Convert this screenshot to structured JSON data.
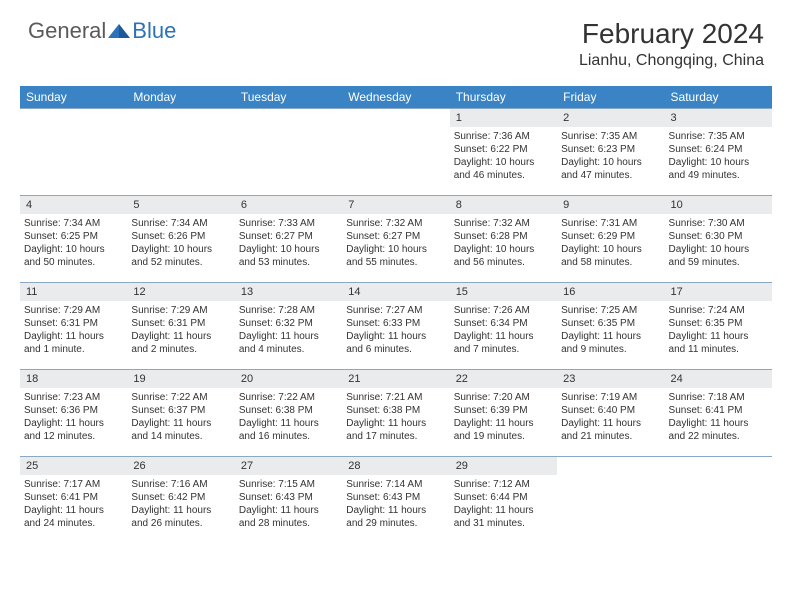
{
  "logo": {
    "general": "General",
    "blue": "Blue"
  },
  "title": "February 2024",
  "location": "Lianhu, Chongqing, China",
  "colors": {
    "header_bg": "#3a84c6",
    "header_text": "#ffffff",
    "daynum_bg": "#e9ebec",
    "row_border": "#8aa8c4",
    "body_text": "#333333",
    "logo_blue": "#2d71b8",
    "logo_gray": "#5a5a5a"
  },
  "day_names": [
    "Sunday",
    "Monday",
    "Tuesday",
    "Wednesday",
    "Thursday",
    "Friday",
    "Saturday"
  ],
  "weeks": [
    [
      {
        "empty": true
      },
      {
        "empty": true
      },
      {
        "empty": true
      },
      {
        "empty": true
      },
      {
        "num": "1",
        "sunrise": "Sunrise: 7:36 AM",
        "sunset": "Sunset: 6:22 PM",
        "dl1": "Daylight: 10 hours",
        "dl2": "and 46 minutes."
      },
      {
        "num": "2",
        "sunrise": "Sunrise: 7:35 AM",
        "sunset": "Sunset: 6:23 PM",
        "dl1": "Daylight: 10 hours",
        "dl2": "and 47 minutes."
      },
      {
        "num": "3",
        "sunrise": "Sunrise: 7:35 AM",
        "sunset": "Sunset: 6:24 PM",
        "dl1": "Daylight: 10 hours",
        "dl2": "and 49 minutes."
      }
    ],
    [
      {
        "num": "4",
        "sunrise": "Sunrise: 7:34 AM",
        "sunset": "Sunset: 6:25 PM",
        "dl1": "Daylight: 10 hours",
        "dl2": "and 50 minutes."
      },
      {
        "num": "5",
        "sunrise": "Sunrise: 7:34 AM",
        "sunset": "Sunset: 6:26 PM",
        "dl1": "Daylight: 10 hours",
        "dl2": "and 52 minutes."
      },
      {
        "num": "6",
        "sunrise": "Sunrise: 7:33 AM",
        "sunset": "Sunset: 6:27 PM",
        "dl1": "Daylight: 10 hours",
        "dl2": "and 53 minutes."
      },
      {
        "num": "7",
        "sunrise": "Sunrise: 7:32 AM",
        "sunset": "Sunset: 6:27 PM",
        "dl1": "Daylight: 10 hours",
        "dl2": "and 55 minutes."
      },
      {
        "num": "8",
        "sunrise": "Sunrise: 7:32 AM",
        "sunset": "Sunset: 6:28 PM",
        "dl1": "Daylight: 10 hours",
        "dl2": "and 56 minutes."
      },
      {
        "num": "9",
        "sunrise": "Sunrise: 7:31 AM",
        "sunset": "Sunset: 6:29 PM",
        "dl1": "Daylight: 10 hours",
        "dl2": "and 58 minutes."
      },
      {
        "num": "10",
        "sunrise": "Sunrise: 7:30 AM",
        "sunset": "Sunset: 6:30 PM",
        "dl1": "Daylight: 10 hours",
        "dl2": "and 59 minutes."
      }
    ],
    [
      {
        "num": "11",
        "sunrise": "Sunrise: 7:29 AM",
        "sunset": "Sunset: 6:31 PM",
        "dl1": "Daylight: 11 hours",
        "dl2": "and 1 minute."
      },
      {
        "num": "12",
        "sunrise": "Sunrise: 7:29 AM",
        "sunset": "Sunset: 6:31 PM",
        "dl1": "Daylight: 11 hours",
        "dl2": "and 2 minutes."
      },
      {
        "num": "13",
        "sunrise": "Sunrise: 7:28 AM",
        "sunset": "Sunset: 6:32 PM",
        "dl1": "Daylight: 11 hours",
        "dl2": "and 4 minutes."
      },
      {
        "num": "14",
        "sunrise": "Sunrise: 7:27 AM",
        "sunset": "Sunset: 6:33 PM",
        "dl1": "Daylight: 11 hours",
        "dl2": "and 6 minutes."
      },
      {
        "num": "15",
        "sunrise": "Sunrise: 7:26 AM",
        "sunset": "Sunset: 6:34 PM",
        "dl1": "Daylight: 11 hours",
        "dl2": "and 7 minutes."
      },
      {
        "num": "16",
        "sunrise": "Sunrise: 7:25 AM",
        "sunset": "Sunset: 6:35 PM",
        "dl1": "Daylight: 11 hours",
        "dl2": "and 9 minutes."
      },
      {
        "num": "17",
        "sunrise": "Sunrise: 7:24 AM",
        "sunset": "Sunset: 6:35 PM",
        "dl1": "Daylight: 11 hours",
        "dl2": "and 11 minutes."
      }
    ],
    [
      {
        "num": "18",
        "sunrise": "Sunrise: 7:23 AM",
        "sunset": "Sunset: 6:36 PM",
        "dl1": "Daylight: 11 hours",
        "dl2": "and 12 minutes."
      },
      {
        "num": "19",
        "sunrise": "Sunrise: 7:22 AM",
        "sunset": "Sunset: 6:37 PM",
        "dl1": "Daylight: 11 hours",
        "dl2": "and 14 minutes."
      },
      {
        "num": "20",
        "sunrise": "Sunrise: 7:22 AM",
        "sunset": "Sunset: 6:38 PM",
        "dl1": "Daylight: 11 hours",
        "dl2": "and 16 minutes."
      },
      {
        "num": "21",
        "sunrise": "Sunrise: 7:21 AM",
        "sunset": "Sunset: 6:38 PM",
        "dl1": "Daylight: 11 hours",
        "dl2": "and 17 minutes."
      },
      {
        "num": "22",
        "sunrise": "Sunrise: 7:20 AM",
        "sunset": "Sunset: 6:39 PM",
        "dl1": "Daylight: 11 hours",
        "dl2": "and 19 minutes."
      },
      {
        "num": "23",
        "sunrise": "Sunrise: 7:19 AM",
        "sunset": "Sunset: 6:40 PM",
        "dl1": "Daylight: 11 hours",
        "dl2": "and 21 minutes."
      },
      {
        "num": "24",
        "sunrise": "Sunrise: 7:18 AM",
        "sunset": "Sunset: 6:41 PM",
        "dl1": "Daylight: 11 hours",
        "dl2": "and 22 minutes."
      }
    ],
    [
      {
        "num": "25",
        "sunrise": "Sunrise: 7:17 AM",
        "sunset": "Sunset: 6:41 PM",
        "dl1": "Daylight: 11 hours",
        "dl2": "and 24 minutes."
      },
      {
        "num": "26",
        "sunrise": "Sunrise: 7:16 AM",
        "sunset": "Sunset: 6:42 PM",
        "dl1": "Daylight: 11 hours",
        "dl2": "and 26 minutes."
      },
      {
        "num": "27",
        "sunrise": "Sunrise: 7:15 AM",
        "sunset": "Sunset: 6:43 PM",
        "dl1": "Daylight: 11 hours",
        "dl2": "and 28 minutes."
      },
      {
        "num": "28",
        "sunrise": "Sunrise: 7:14 AM",
        "sunset": "Sunset: 6:43 PM",
        "dl1": "Daylight: 11 hours",
        "dl2": "and 29 minutes."
      },
      {
        "num": "29",
        "sunrise": "Sunrise: 7:12 AM",
        "sunset": "Sunset: 6:44 PM",
        "dl1": "Daylight: 11 hours",
        "dl2": "and 31 minutes."
      },
      {
        "empty": true
      },
      {
        "empty": true
      }
    ]
  ]
}
